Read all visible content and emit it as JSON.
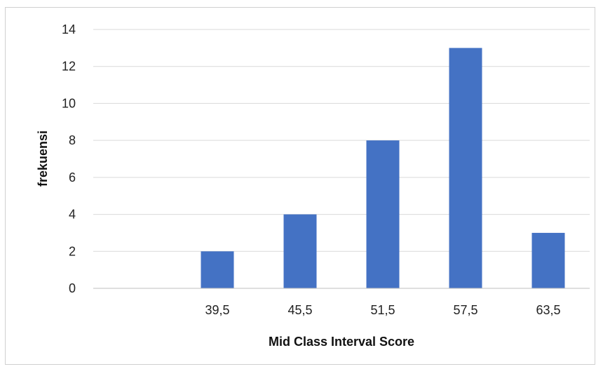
{
  "chart_data": {
    "type": "bar",
    "title": "",
    "xlabel": "Mid Class Interval Score",
    "ylabel": "frekuensi",
    "categories": [
      "",
      "39,5",
      "45,5",
      "51,5",
      "57,5",
      "63,5"
    ],
    "values": [
      null,
      2,
      4,
      8,
      13,
      3
    ],
    "yticks": [
      "0",
      "2",
      "4",
      "6",
      "8",
      "10",
      "12",
      "14"
    ],
    "ylim": [
      0,
      14
    ],
    "grid": true,
    "legend": "none",
    "bar_color": "#4472C4",
    "grid_color": "#d9d9d9"
  }
}
